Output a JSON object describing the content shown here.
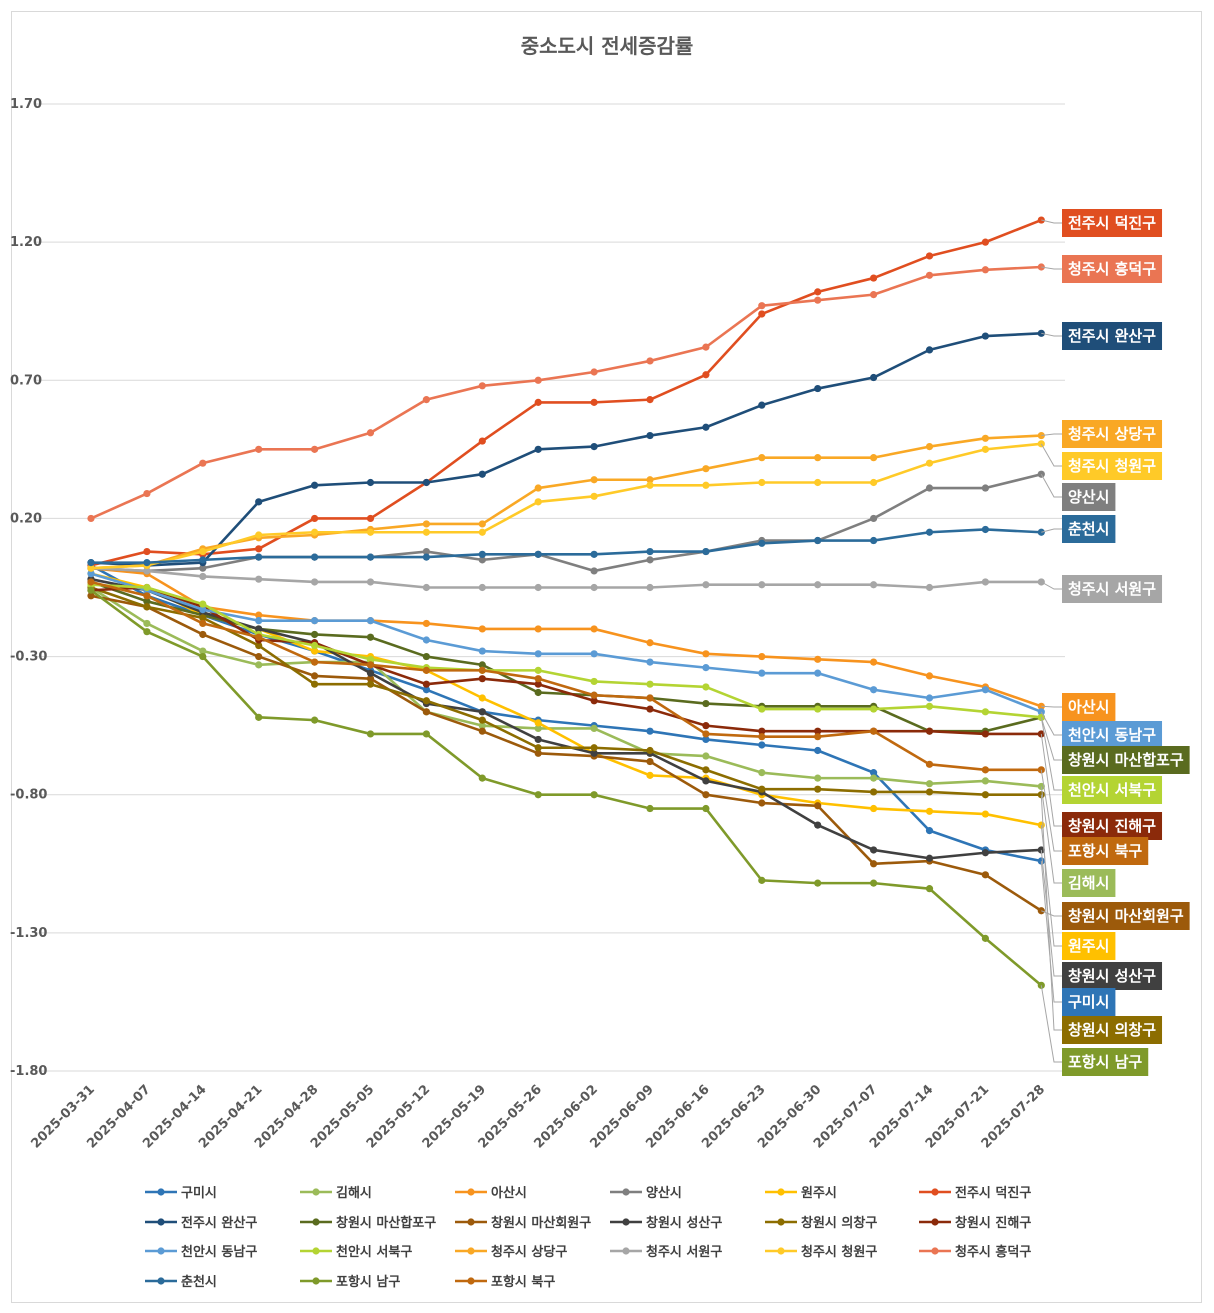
{
  "chart_data": {
    "type": "line",
    "title": "중소도시 전세증감률",
    "xlabel": "",
    "ylabel": "",
    "ylim": [
      -1.8,
      1.7
    ],
    "yticks": [
      "1.70",
      "1.20",
      "0.70",
      "0.20",
      "-0.30",
      "-0.80",
      "-1.30",
      "-1.80"
    ],
    "grid": "horizontal",
    "legend": "bottom",
    "categories": [
      "2025-03-31",
      "2025-04-07",
      "2025-04-14",
      "2025-04-21",
      "2025-04-28",
      "2025-05-05",
      "2025-05-12",
      "2025-05-19",
      "2025-05-26",
      "2025-06-02",
      "2025-06-09",
      "2025-06-16",
      "2025-06-23",
      "2025-06-30",
      "2025-07-07",
      "2025-07-14",
      "2025-07-21",
      "2025-07-28"
    ],
    "series": [
      {
        "name": "구미시",
        "color": "#2e75b6",
        "values": [
          0.03,
          -0.08,
          -0.15,
          -0.22,
          -0.28,
          -0.35,
          -0.42,
          -0.5,
          -0.53,
          -0.55,
          -0.57,
          -0.6,
          -0.62,
          -0.64,
          -0.72,
          -0.93,
          -1.0,
          -1.04
        ]
      },
      {
        "name": "김해시",
        "color": "#9bbb59",
        "values": [
          -0.05,
          -0.18,
          -0.28,
          -0.33,
          -0.32,
          -0.32,
          -0.5,
          -0.55,
          -0.56,
          -0.56,
          -0.65,
          -0.66,
          -0.72,
          -0.74,
          -0.74,
          -0.76,
          -0.75,
          -0.77
        ]
      },
      {
        "name": "아산시",
        "color": "#f7931e",
        "values": [
          0.02,
          0.0,
          -0.12,
          -0.15,
          -0.17,
          -0.17,
          -0.18,
          -0.2,
          -0.2,
          -0.2,
          -0.25,
          -0.29,
          -0.3,
          -0.31,
          -0.32,
          -0.37,
          -0.41,
          -0.48
        ]
      },
      {
        "name": "양산시",
        "color": "#7f7f7f",
        "values": [
          0.02,
          0.01,
          0.02,
          0.06,
          0.06,
          0.06,
          0.08,
          0.05,
          0.07,
          0.01,
          0.05,
          0.08,
          0.12,
          0.12,
          0.2,
          0.31,
          0.31,
          0.36
        ]
      },
      {
        "name": "원주시",
        "color": "#ffc000",
        "values": [
          0.0,
          -0.05,
          -0.15,
          -0.2,
          -0.28,
          -0.3,
          -0.35,
          -0.45,
          -0.54,
          -0.65,
          -0.73,
          -0.74,
          -0.8,
          -0.83,
          -0.85,
          -0.86,
          -0.87,
          -0.91
        ]
      },
      {
        "name": "전주시 덕진구",
        "color": "#e04e20",
        "values": [
          0.03,
          0.08,
          0.07,
          0.09,
          0.2,
          0.2,
          0.33,
          0.48,
          0.62,
          0.62,
          0.63,
          0.72,
          0.94,
          1.02,
          1.07,
          1.15,
          1.2,
          1.28
        ]
      },
      {
        "name": "전주시 완산구",
        "color": "#1f4e79",
        "values": [
          0.04,
          0.03,
          0.04,
          0.26,
          0.32,
          0.33,
          0.33,
          0.36,
          0.45,
          0.46,
          0.5,
          0.53,
          0.61,
          0.67,
          0.71,
          0.81,
          0.86,
          0.87
        ]
      },
      {
        "name": "창원시 마산합포구",
        "color": "#5a6b1f",
        "values": [
          -0.03,
          -0.1,
          -0.15,
          -0.2,
          -0.22,
          -0.23,
          -0.3,
          -0.33,
          -0.43,
          -0.44,
          -0.45,
          -0.47,
          -0.48,
          -0.48,
          -0.48,
          -0.57,
          -0.57,
          -0.52
        ]
      },
      {
        "name": "창원시 마산회원구",
        "color": "#9c5a0b",
        "values": [
          -0.08,
          -0.12,
          -0.22,
          -0.3,
          -0.37,
          -0.38,
          -0.5,
          -0.57,
          -0.65,
          -0.66,
          -0.68,
          -0.8,
          -0.83,
          -0.84,
          -1.05,
          -1.04,
          -1.09,
          -1.22
        ]
      },
      {
        "name": "창원시 성산구",
        "color": "#404040",
        "values": [
          -0.02,
          -0.06,
          -0.14,
          -0.2,
          -0.25,
          -0.36,
          -0.47,
          -0.5,
          -0.6,
          -0.65,
          -0.65,
          -0.75,
          -0.79,
          -0.91,
          -1.0,
          -1.03,
          -1.01,
          -1.0
        ]
      },
      {
        "name": "창원시 의창구",
        "color": "#8c6d00",
        "values": [
          -0.05,
          -0.12,
          -0.16,
          -0.26,
          -0.4,
          -0.4,
          -0.46,
          -0.53,
          -0.63,
          -0.63,
          -0.64,
          -0.71,
          -0.78,
          -0.78,
          -0.79,
          -0.79,
          -0.8,
          -0.8
        ]
      },
      {
        "name": "창원시 진해구",
        "color": "#8b2a0a",
        "values": [
          -0.06,
          -0.05,
          -0.12,
          -0.24,
          -0.25,
          -0.33,
          -0.4,
          -0.38,
          -0.4,
          -0.46,
          -0.49,
          -0.55,
          -0.57,
          -0.57,
          -0.57,
          -0.57,
          -0.58,
          -0.58
        ]
      },
      {
        "name": "천안시 동남구",
        "color": "#5b9bd5",
        "values": [
          0.0,
          -0.06,
          -0.13,
          -0.17,
          -0.17,
          -0.17,
          -0.24,
          -0.28,
          -0.29,
          -0.29,
          -0.32,
          -0.34,
          -0.36,
          -0.36,
          -0.42,
          -0.45,
          -0.42,
          -0.5
        ]
      },
      {
        "name": "천안시 서북구",
        "color": "#b4d433",
        "values": [
          -0.04,
          -0.05,
          -0.11,
          -0.22,
          -0.26,
          -0.31,
          -0.34,
          -0.35,
          -0.35,
          -0.39,
          -0.4,
          -0.41,
          -0.49,
          -0.49,
          -0.49,
          -0.48,
          -0.5,
          -0.52
        ]
      },
      {
        "name": "청주시 상당구",
        "color": "#f9a825",
        "values": [
          0.02,
          0.03,
          0.09,
          0.13,
          0.14,
          0.16,
          0.18,
          0.18,
          0.31,
          0.34,
          0.34,
          0.38,
          0.42,
          0.42,
          0.42,
          0.46,
          0.49,
          0.5
        ]
      },
      {
        "name": "청주시 서원구",
        "color": "#a6a6a6",
        "values": [
          0.02,
          0.01,
          -0.01,
          -0.02,
          -0.03,
          -0.03,
          -0.05,
          -0.05,
          -0.05,
          -0.05,
          -0.05,
          -0.04,
          -0.04,
          -0.04,
          -0.04,
          -0.05,
          -0.03,
          -0.03
        ]
      },
      {
        "name": "청주시 청원구",
        "color": "#ffca28",
        "values": [
          0.02,
          0.03,
          0.08,
          0.14,
          0.15,
          0.15,
          0.15,
          0.15,
          0.26,
          0.28,
          0.32,
          0.32,
          0.33,
          0.33,
          0.33,
          0.4,
          0.45,
          0.47
        ]
      },
      {
        "name": "청주시 흥덕구",
        "color": "#ea7553",
        "values": [
          0.2,
          0.29,
          0.4,
          0.45,
          0.45,
          0.51,
          0.63,
          0.68,
          0.7,
          0.73,
          0.77,
          0.82,
          0.97,
          0.99,
          1.01,
          1.08,
          1.1,
          1.11
        ]
      },
      {
        "name": "춘천시",
        "color": "#2b6b9a",
        "values": [
          0.04,
          0.04,
          0.05,
          0.06,
          0.06,
          0.06,
          0.06,
          0.07,
          0.07,
          0.07,
          0.08,
          0.08,
          0.11,
          0.12,
          0.12,
          0.15,
          0.16,
          0.15
        ]
      },
      {
        "name": "포항시 남구",
        "color": "#7f9a2a",
        "values": [
          -0.06,
          -0.21,
          -0.3,
          -0.52,
          -0.53,
          -0.58,
          -0.58,
          -0.74,
          -0.8,
          -0.8,
          -0.85,
          -0.85,
          -1.11,
          -1.12,
          -1.12,
          -1.14,
          -1.32,
          -1.49
        ]
      },
      {
        "name": "포항시 북구",
        "color": "#c0690f",
        "values": [
          -0.03,
          -0.08,
          -0.18,
          -0.23,
          -0.32,
          -0.33,
          -0.35,
          -0.35,
          -0.38,
          -0.44,
          -0.45,
          -0.58,
          -0.59,
          -0.59,
          -0.57,
          -0.69,
          -0.71,
          -0.71
        ]
      }
    ],
    "end_labels": [
      {
        "series": "전주시 덕진구",
        "color": "#e04e20"
      },
      {
        "series": "청주시 흥덕구",
        "color": "#ea7553"
      },
      {
        "series": "전주시 완산구",
        "color": "#1f4e79"
      },
      {
        "series": "청주시 상당구",
        "color": "#f9a825"
      },
      {
        "series": "청주시 청원구",
        "color": "#ffca28"
      },
      {
        "series": "양산시",
        "color": "#7f7f7f"
      },
      {
        "series": "춘천시",
        "color": "#2b6b9a"
      },
      {
        "series": "청주시 서원구",
        "color": "#a6a6a6"
      },
      {
        "series": "아산시",
        "color": "#f7931e"
      },
      {
        "series": "천안시 동남구",
        "color": "#5b9bd5"
      },
      {
        "series": "창원시 마산합포구",
        "color": "#5a6b1f"
      },
      {
        "series": "천안시 서북구",
        "color": "#b4d433"
      },
      {
        "series": "창원시 진해구",
        "color": "#8b2a0a"
      },
      {
        "series": "포항시 북구",
        "color": "#c0690f"
      },
      {
        "series": "김해시",
        "color": "#9bbb59"
      },
      {
        "series": "창원시 마산회원구",
        "color": "#9c5a0b"
      },
      {
        "series": "원주시",
        "color": "#ffc000"
      },
      {
        "series": "창원시 성산구",
        "color": "#404040"
      },
      {
        "series": "구미시",
        "color": "#2e75b6"
      },
      {
        "series": "창원시 의창구",
        "color": "#8c6d00"
      },
      {
        "series": "포항시 남구",
        "color": "#7f9a2a"
      }
    ]
  }
}
